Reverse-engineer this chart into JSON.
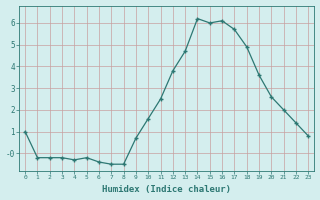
{
  "x": [
    0,
    1,
    2,
    3,
    4,
    5,
    6,
    7,
    8,
    9,
    10,
    11,
    12,
    13,
    14,
    15,
    16,
    17,
    18,
    19,
    20,
    21,
    22,
    23
  ],
  "y": [
    1.0,
    -0.2,
    -0.2,
    -0.2,
    -0.3,
    -0.2,
    -0.4,
    -0.5,
    -0.5,
    0.7,
    1.6,
    2.5,
    3.8,
    4.7,
    6.2,
    6.0,
    6.1,
    5.7,
    4.9,
    3.6,
    2.6,
    2.0,
    1.4,
    0.8
  ],
  "line_color": "#2d7873",
  "marker": "+",
  "marker_size": 3,
  "bg_color": "#d4eeee",
  "grid_color": "#c8a0a0",
  "xlabel": "Humidex (Indice chaleur)",
  "ylim": [
    -0.8,
    6.8
  ],
  "axis_color": "#2d7873",
  "font_color": "#2d7873"
}
